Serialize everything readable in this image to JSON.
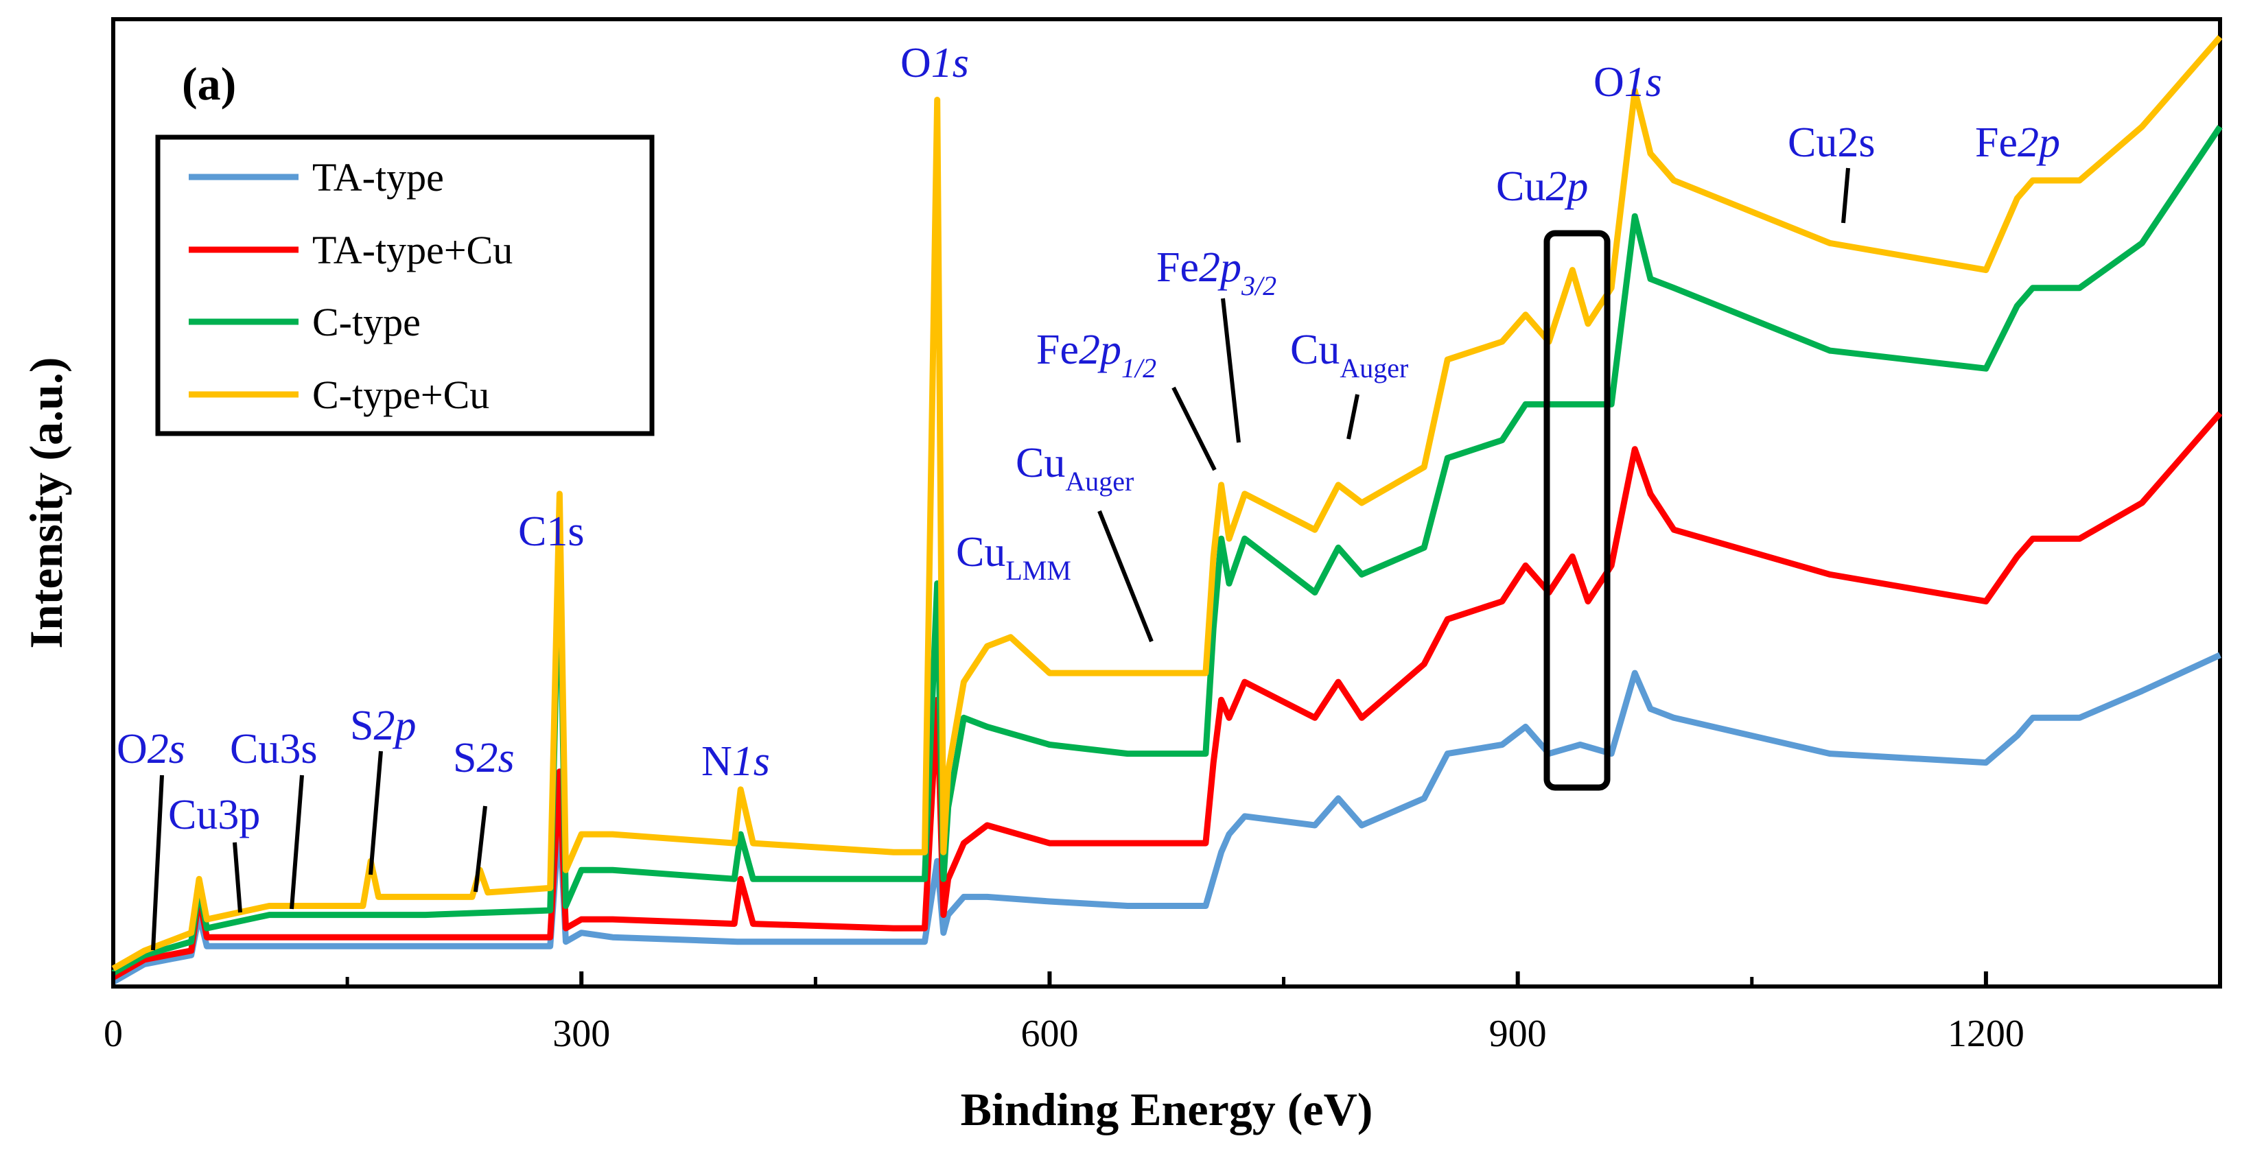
{
  "chart_data": {
    "type": "line",
    "panel_label": "(a)",
    "xlabel": "Binding Energy (eV)",
    "ylabel": "Intensity (a.u.)",
    "xlim": [
      0,
      1350
    ],
    "xticks": [
      0,
      300,
      600,
      900,
      1200
    ],
    "y_ticks_shown": false,
    "grid": false,
    "legend_position": "top-left",
    "series": [
      {
        "name": "TA-type",
        "color": "#5b9bd5",
        "x": [
          0,
          20,
          50,
          55,
          60,
          100,
          200,
          280,
          286,
          290,
          300,
          320,
          400,
          500,
          520,
          528,
          532,
          535,
          545,
          560,
          600,
          650,
          700,
          705,
          710,
          715,
          725,
          770,
          785,
          800,
          840,
          855,
          890,
          905,
          920,
          940,
          960,
          975,
          985,
          1000,
          1100,
          1200,
          1220,
          1230,
          1260,
          1300,
          1350
        ],
        "y": [
          0.5,
          2.5,
          3.5,
          8,
          4.5,
          4.5,
          4.5,
          4.5,
          19,
          5,
          6,
          5.5,
          5,
          5,
          5,
          14,
          6,
          8,
          10,
          10,
          9.5,
          9,
          9,
          12,
          15,
          17,
          19,
          18,
          21,
          18,
          21,
          26,
          27,
          29,
          26,
          27,
          26,
          35,
          31,
          30,
          26,
          25,
          28,
          30,
          30,
          33,
          37
        ]
      },
      {
        "name": "TA-type+Cu",
        "color": "#ff0000",
        "x": [
          0,
          20,
          50,
          55,
          60,
          100,
          200,
          280,
          286,
          290,
          300,
          320,
          398,
          402,
          410,
          500,
          520,
          528,
          532,
          535,
          545,
          560,
          600,
          650,
          700,
          705,
          710,
          715,
          725,
          770,
          785,
          800,
          840,
          855,
          890,
          905,
          920,
          935,
          945,
          960,
          975,
          985,
          1000,
          1100,
          1200,
          1220,
          1230,
          1260,
          1300,
          1350
        ],
        "y": [
          1,
          3,
          4,
          10,
          5.5,
          5.5,
          5.5,
          5.5,
          24,
          6.5,
          7.5,
          7.5,
          7,
          12,
          7,
          6.5,
          6.5,
          32,
          8,
          12,
          16,
          18,
          16,
          16,
          16,
          25,
          32,
          30,
          34,
          30,
          34,
          30,
          36,
          41,
          43,
          47,
          44,
          48,
          43,
          47,
          60,
          55,
          51,
          46,
          43,
          48,
          50,
          50,
          54,
          64
        ]
      },
      {
        "name": "C-type",
        "color": "#00b050",
        "x": [
          0,
          20,
          50,
          55,
          60,
          100,
          200,
          280,
          286,
          290,
          300,
          320,
          398,
          402,
          410,
          500,
          520,
          528,
          532,
          535,
          545,
          560,
          600,
          650,
          700,
          705,
          710,
          715,
          725,
          770,
          785,
          800,
          840,
          855,
          890,
          905,
          960,
          975,
          985,
          1000,
          1100,
          1200,
          1220,
          1230,
          1260,
          1300,
          1350
        ],
        "y": [
          1.5,
          3.5,
          5,
          11,
          6.5,
          8,
          8,
          8.5,
          50,
          9,
          13,
          13,
          12,
          17,
          12,
          12,
          12,
          45,
          12,
          20,
          30,
          29,
          27,
          26,
          26,
          40,
          50,
          45,
          50,
          44,
          49,
          46,
          49,
          59,
          61,
          65,
          65,
          86,
          79,
          78,
          71,
          69,
          76,
          78,
          78,
          83,
          96
        ]
      },
      {
        "name": "C-type+Cu",
        "color": "#ffc000",
        "x": [
          0,
          20,
          50,
          55,
          60,
          100,
          160,
          165,
          170,
          200,
          230,
          235,
          240,
          280,
          286,
          290,
          300,
          320,
          398,
          402,
          410,
          500,
          520,
          528,
          532,
          535,
          545,
          560,
          575,
          600,
          650,
          700,
          705,
          710,
          715,
          725,
          770,
          785,
          800,
          840,
          855,
          890,
          905,
          920,
          935,
          945,
          960,
          975,
          985,
          1000,
          1100,
          1200,
          1220,
          1230,
          1260,
          1300,
          1350
        ],
        "y": [
          2,
          4,
          6,
          12,
          7.5,
          9,
          9,
          14,
          10,
          10,
          10,
          13,
          10.5,
          11,
          55,
          13,
          17,
          17,
          16,
          22,
          16,
          15,
          15,
          99,
          15,
          24,
          34,
          38,
          39,
          35,
          35,
          35,
          48,
          56,
          50,
          55,
          51,
          56,
          54,
          58,
          70,
          72,
          75,
          72,
          80,
          74,
          78,
          100,
          93,
          90,
          83,
          80,
          88,
          90,
          90,
          96,
          106
        ]
      }
    ],
    "annotations": [
      {
        "text": "(a)",
        "x": 30,
        "type": "panel"
      },
      {
        "text": "O",
        "italic": "2s",
        "x": 25
      },
      {
        "text": "Cu3p",
        "x": 78
      },
      {
        "text": "Cu3s",
        "x": 115
      },
      {
        "text": "S",
        "italic": "2p",
        "x": 165
      },
      {
        "text": "S",
        "italic": "2s",
        "x": 232
      },
      {
        "text": "C1s",
        "x": 286
      },
      {
        "text": "N",
        "italic": "1s",
        "x": 400
      },
      {
        "text": "O",
        "italic": "1s",
        "x": 532
      },
      {
        "text": "Cu",
        "subscript": "LMM",
        "x": 568
      },
      {
        "text": "Cu",
        "subscript": "Auger",
        "x": 650
      },
      {
        "text": "Fe",
        "italic": "2p",
        "subscript": "1/2",
        "x": 710
      },
      {
        "text": "Fe",
        "italic": "2p",
        "subscript": "3/2",
        "x": 722
      },
      {
        "text": "Cu",
        "subscript": "Auger",
        "x": 790
      },
      {
        "text": "Cu",
        "italic": "2p",
        "x": 935
      },
      {
        "text": "O",
        "italic": "1s",
        "x": 975
      },
      {
        "text": "Cu2s",
        "x": 1100
      },
      {
        "text": "Fe",
        "italic": "2p",
        "x": 1220
      }
    ],
    "highlight_box": {
      "x_range": [
        920,
        955
      ],
      "description_visible": false
    }
  },
  "legend": {
    "entries": [
      {
        "label": "TA-type",
        "color": "#5b9bd5"
      },
      {
        "label": "TA-type+Cu",
        "color": "#ff0000"
      },
      {
        "label": "C-type",
        "color": "#00b050"
      },
      {
        "label": "C-type+Cu",
        "color": "#ffc000"
      }
    ]
  }
}
